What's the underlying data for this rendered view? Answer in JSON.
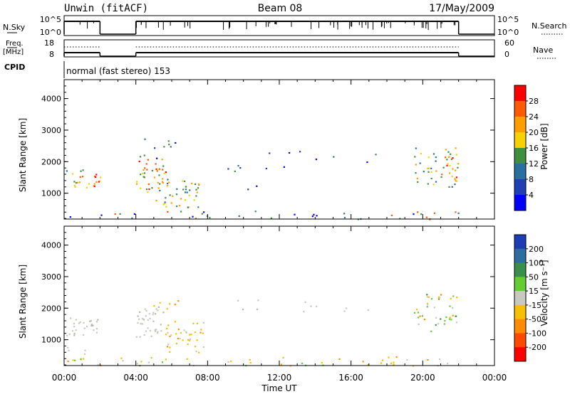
{
  "header": {
    "station": "Unwin (fitACF)",
    "beam": "Beam 08",
    "date": "17/May/2009"
  },
  "status_panels": {
    "nsky_label": "N.Sky",
    "nsky_ticks": [
      "10^5",
      "10^0"
    ],
    "nsearch_label": "N.Search",
    "nsearch_ticks": [
      "10^5",
      "10^0"
    ],
    "freq_label_1": "Freq.",
    "freq_label_2": "[MHz]",
    "freq_ticks": [
      "18",
      "8"
    ],
    "nave_label": "Nave",
    "nave_ticks": [
      "60",
      "0"
    ],
    "cpid_label": "CPID",
    "cpid_text": "normal (fast stereo) 153"
  },
  "chart_data": [
    {
      "type": "heatmap",
      "title": "",
      "xlabel": "Time UT",
      "ylabel": "Slant Range [km]",
      "xlim": [
        0,
        24
      ],
      "ylim": [
        180,
        4600
      ],
      "x_ticks": [
        "00:00",
        "04:00",
        "08:00",
        "12:00",
        "16:00",
        "20:00",
        "00:00"
      ],
      "y_ticks": [
        "1000",
        "2000",
        "3000",
        "4000"
      ],
      "colorbar": {
        "label": "Power [dB]",
        "ticks": [
          "28",
          "24",
          "20",
          "16",
          "12",
          "8",
          "4"
        ],
        "colors": [
          "#ff0000",
          "#ff5a00",
          "#ff9e00",
          "#f5d200",
          "#3f8f3f",
          "#2b6fa0",
          "#1f3fb4",
          "#0000ff"
        ]
      },
      "data_gaps_hours": [
        [
          2.0,
          4.0
        ],
        [
          22.0,
          24.0
        ]
      ]
    },
    {
      "type": "heatmap",
      "title": "",
      "xlabel": "Time UT",
      "ylabel": "Slant Range [km]",
      "xlim": [
        0,
        24
      ],
      "ylim": [
        180,
        4600
      ],
      "x_ticks": [
        "00:00",
        "04:00",
        "08:00",
        "12:00",
        "16:00",
        "20:00",
        "00:00"
      ],
      "y_ticks": [
        "1000",
        "2000",
        "3000",
        "4000"
      ],
      "colorbar": {
        "label": "Velocity [m s⁻¹]",
        "ticks": [
          "200",
          "100",
          "50",
          "15",
          "-15",
          "-50",
          "-100",
          "-200"
        ],
        "colors": [
          "#1e3cb4",
          "#2e6e9e",
          "#3c8f4a",
          "#66cc33",
          "#c8c8c0",
          "#f5c000",
          "#ff8c00",
          "#ff4a00",
          "#ff0000"
        ]
      },
      "data_gaps_hours": [
        [
          2.0,
          4.0
        ],
        [
          22.0,
          24.0
        ]
      ]
    }
  ],
  "colors": {
    "axis": "#000000",
    "ground_scatter": "#c8c8c0"
  }
}
